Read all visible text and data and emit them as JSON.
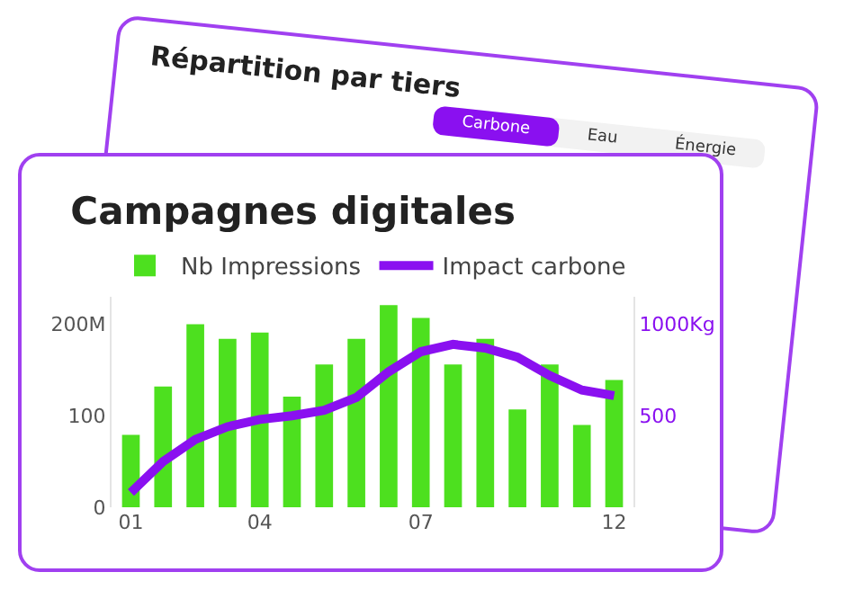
{
  "chart_data": [
    {
      "type": "other",
      "title": "Répartition par tiers",
      "annotations": [
        "Carbone",
        "Eau",
        "Énergie"
      ]
    },
    {
      "type": "bar",
      "title": "Campagnes digitales",
      "categories": [
        "01",
        null,
        null,
        null,
        "04",
        null,
        null,
        null,
        null,
        "07",
        null,
        null,
        null,
        null,
        null,
        "12"
      ],
      "series": [
        {
          "name": "Nb Impressions",
          "type": "bar",
          "color": "#4de01f",
          "values": [
            79,
            132,
            200,
            184,
            191,
            121,
            156,
            184,
            221,
            207,
            156,
            184,
            107,
            156,
            90,
            139
          ]
        },
        {
          "name": "Impact carbone",
          "type": "line",
          "axis": "y2",
          "color": "#8a10f0",
          "values": [
            80,
            250,
            370,
            440,
            480,
            500,
            530,
            600,
            740,
            850,
            890,
            870,
            820,
            720,
            640,
            610
          ]
        }
      ],
      "ylim": [
        0,
        230
      ],
      "yticks": [
        0,
        100,
        {
          "value": 200,
          "label": "200M"
        }
      ],
      "y2lim": [
        0,
        1150
      ],
      "y2ticks": [
        {
          "value": 500,
          "label": "500"
        },
        {
          "value": 1000,
          "label": "1000Kg"
        }
      ],
      "legend": "top",
      "grid": false,
      "marker": "none"
    }
  ]
}
